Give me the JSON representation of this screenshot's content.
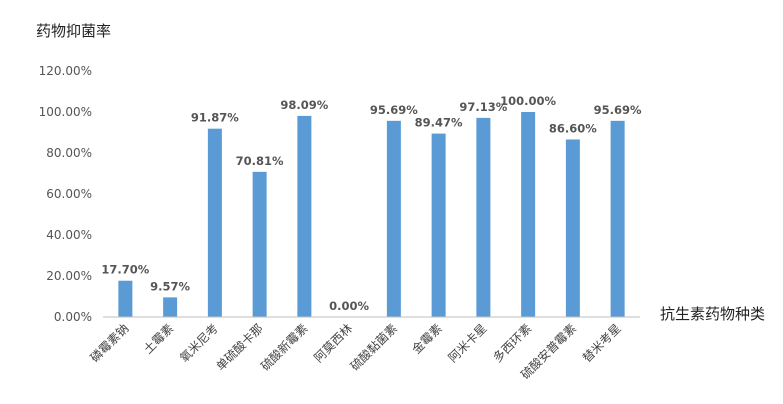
{
  "chart_data": {
    "type": "bar",
    "title": "",
    "ylabel": "药物抑菌率",
    "xlabel": "抗生素药物种类",
    "categories": [
      "磷霉素钠",
      "土霉素",
      "氧米尼考",
      "单硫酸卡那",
      "硫酸新霉素",
      "阿莫西林",
      "硫酸黏菌素",
      "金霉素",
      "阿米卡星",
      "多西环素",
      "硫酸安普霉素",
      "替米考星"
    ],
    "values": [
      17.7,
      9.57,
      91.87,
      70.81,
      98.09,
      0.0,
      95.69,
      89.47,
      97.13,
      100.0,
      86.6,
      95.69
    ],
    "data_labels": [
      "17.70%",
      "9.57%",
      "91.87%",
      "70.81%",
      "98.09%",
      "0.00%",
      "95.69%",
      "89.47%",
      "97.13%",
      "100.00%",
      "86.60%",
      "95.69%"
    ],
    "ylim": [
      0,
      120
    ],
    "yticks": [
      0,
      20,
      40,
      60,
      80,
      100,
      120
    ],
    "ytick_labels": [
      "0.00%",
      "20.00%",
      "40.00%",
      "60.00%",
      "80.00%",
      "100.00%",
      "120.00%"
    ],
    "grid": false,
    "legend": "none",
    "colors": {
      "bar": "#5B9BD5",
      "axis": "#BFBFBF"
    }
  }
}
